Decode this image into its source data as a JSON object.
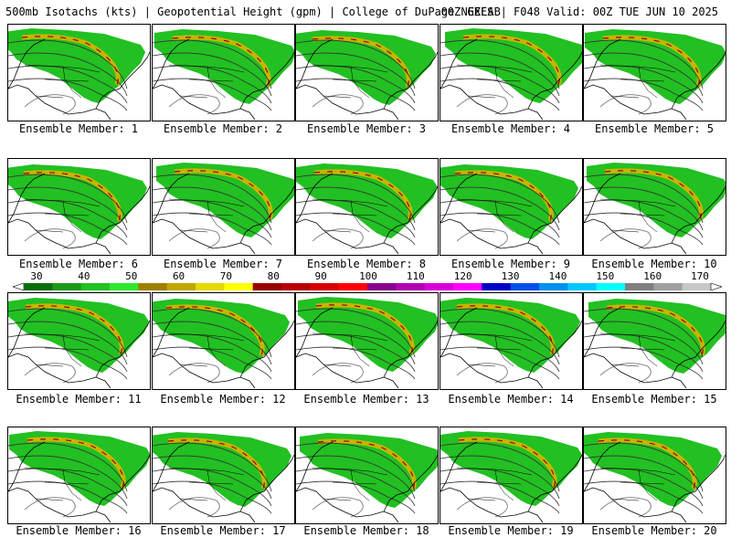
{
  "header": {
    "left": "500mb Isotachs (kts) | Geopotential Height (gpm) | College of DuPage NEXLAB",
    "right": "00Z GEFS | F048 Valid: 00Z TUE JUN 10 2025"
  },
  "members": [
    {
      "label": "Ensemble Member: 1"
    },
    {
      "label": "Ensemble Member: 2"
    },
    {
      "label": "Ensemble Member: 3"
    },
    {
      "label": "Ensemble Member: 4"
    },
    {
      "label": "Ensemble Member: 5"
    },
    {
      "label": "Ensemble Member: 6"
    },
    {
      "label": "Ensemble Member: 7"
    },
    {
      "label": "Ensemble Member: 8"
    },
    {
      "label": "Ensemble Member: 9"
    },
    {
      "label": "Ensemble Member: 10"
    },
    {
      "label": "Ensemble Member: 11"
    },
    {
      "label": "Ensemble Member: 12"
    },
    {
      "label": "Ensemble Member: 13"
    },
    {
      "label": "Ensemble Member: 14"
    },
    {
      "label": "Ensemble Member: 15"
    },
    {
      "label": "Ensemble Member: 16"
    },
    {
      "label": "Ensemble Member: 17"
    },
    {
      "label": "Ensemble Member: 18"
    },
    {
      "label": "Ensemble Member: 19"
    },
    {
      "label": "Ensemble Member: 20"
    }
  ],
  "colorbar": {
    "labels": [
      "30",
      "40",
      "50",
      "60",
      "70",
      "80",
      "90",
      "100",
      "110",
      "120",
      "130",
      "140",
      "150",
      "160",
      "170"
    ],
    "colors": [
      "#0a6e0a",
      "#1a9a1a",
      "#21c121",
      "#2ee82e",
      "#a08000",
      "#c0a800",
      "#e8d800",
      "#ffff00",
      "#9a0000",
      "#b80000",
      "#d80000",
      "#ff0000",
      "#8a008a",
      "#b000b0",
      "#d800d8",
      "#ff00ff",
      "#0000c8",
      "#0050e6",
      "#0090f0",
      "#00c8ff",
      "#00ffff",
      "#808080",
      "#a0a0a0",
      "#c8c8c8"
    ]
  }
}
